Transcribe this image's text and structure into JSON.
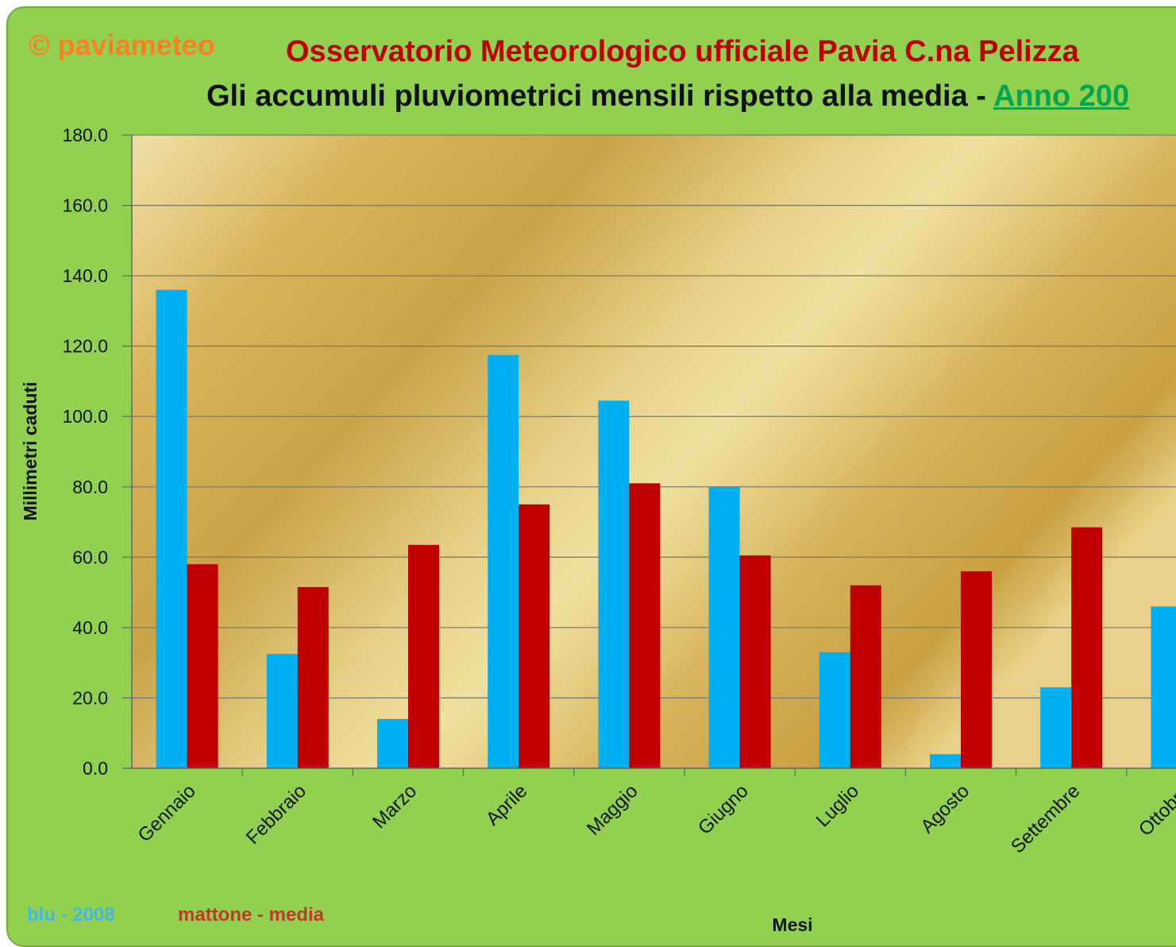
{
  "header": {
    "copyright": "© paviameteo",
    "title": "Osservatorio Meteorologico ufficiale Pavia C.na Pelizza",
    "subtitle_prefix": "Gli accumuli pluviometrici mensili rispetto alla media - ",
    "subtitle_link": "Anno 200"
  },
  "legend": {
    "series1": "blu - 2008",
    "series2": "mattone - media"
  },
  "colors": {
    "series1": "#00b0f0",
    "series2": "#c00000",
    "background": "#92d050"
  },
  "chart_data": {
    "type": "bar",
    "title": "Gli accumuli pluviometrici mensili rispetto alla media - Anno 200",
    "xlabel": "Mesi",
    "ylabel": "Millimetri caduti",
    "ylim": [
      0,
      180
    ],
    "yticks": [
      "0.0",
      "20.0",
      "40.0",
      "60.0",
      "80.0",
      "100.0",
      "120.0",
      "140.0",
      "160.0",
      "180.0"
    ],
    "grid": true,
    "legend_position": "bottom-left",
    "categories": [
      "Gennaio",
      "Febbraio",
      "Marzo",
      "Aprile",
      "Maggio",
      "Giugno",
      "Luglio",
      "Agosto",
      "Settembre",
      "Ottobre"
    ],
    "series": [
      {
        "name": "blu - 2008",
        "color": "#00b0f0",
        "values": [
          136,
          32.5,
          14,
          117.5,
          104.5,
          80,
          33,
          4,
          23,
          46
        ]
      },
      {
        "name": "mattone - media",
        "color": "#c00000",
        "values": [
          58,
          51.5,
          63.5,
          75,
          81,
          60.5,
          52,
          56,
          68.5,
          null
        ]
      }
    ]
  }
}
